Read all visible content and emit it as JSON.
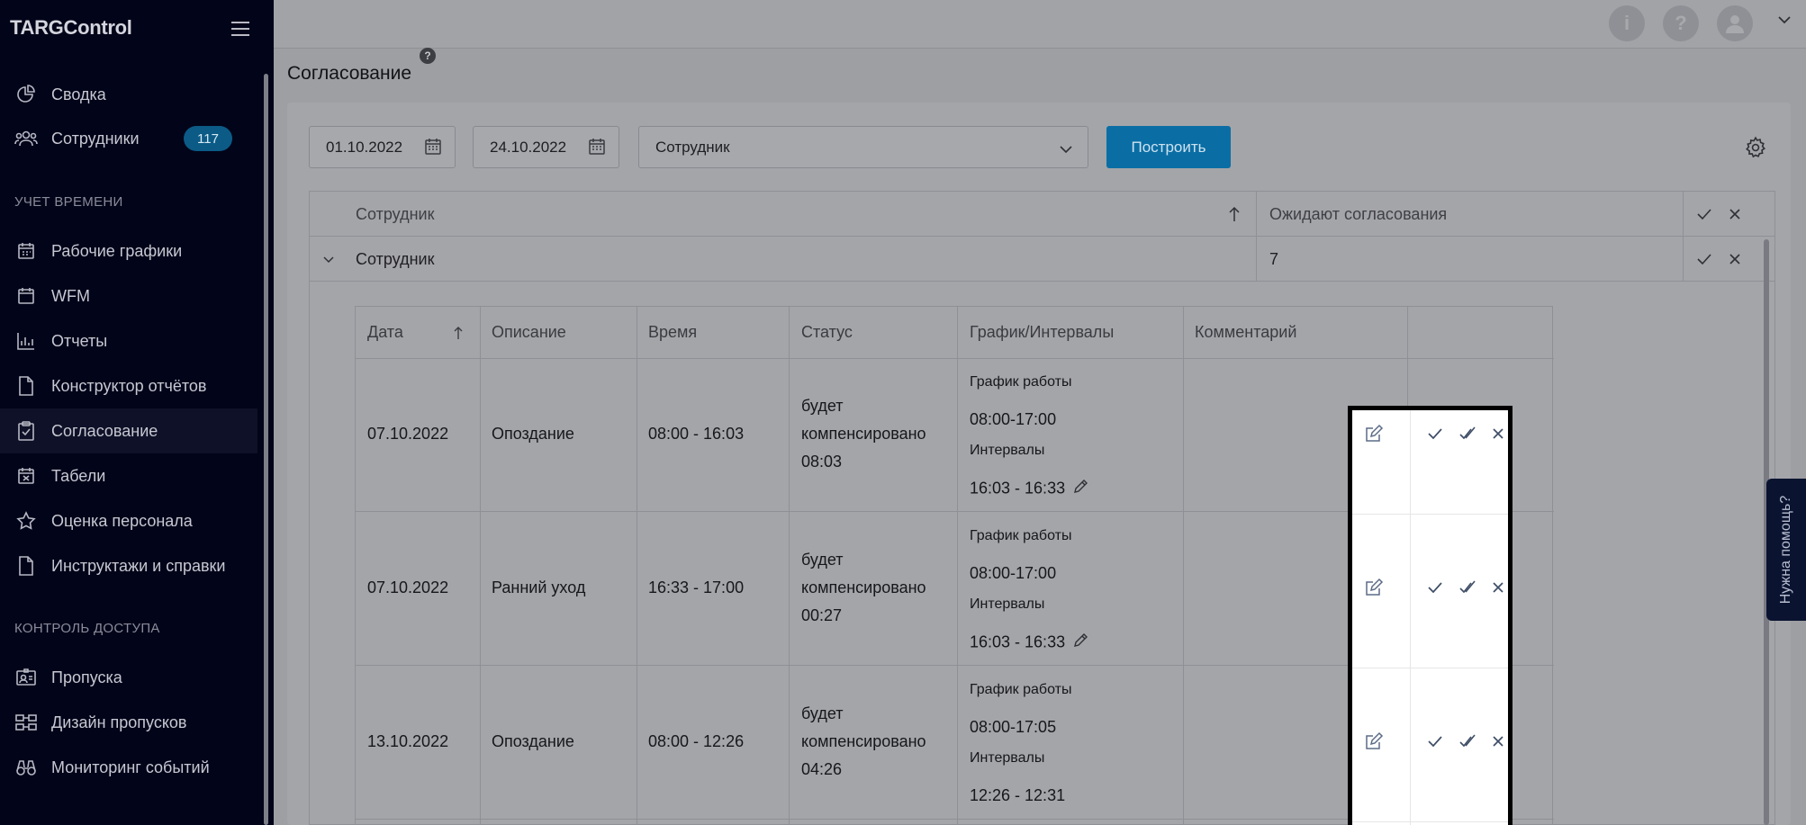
{
  "app": {
    "brand": "TARGControl"
  },
  "sidebar": {
    "items": [
      {
        "label": "Сводка",
        "icon": "pie-chart-icon"
      },
      {
        "label": "Сотрудники",
        "icon": "users-icon",
        "badge": "117"
      },
      {
        "label": "Рабочие графики",
        "icon": "calendar-icon"
      },
      {
        "label": "WFM",
        "icon": "calendar-blank-icon"
      },
      {
        "label": "Отчеты",
        "icon": "bar-chart-icon"
      },
      {
        "label": "Конструктор отчётов",
        "icon": "document-icon"
      },
      {
        "label": "Согласование",
        "icon": "clipboard-check-icon",
        "active": true
      },
      {
        "label": "Табели",
        "icon": "calendar-x-icon"
      },
      {
        "label": "Оценка персонала",
        "icon": "star-icon"
      },
      {
        "label": "Инструктажи и справки",
        "icon": "document-icon"
      },
      {
        "label": "Пропуска",
        "icon": "id-card-icon"
      },
      {
        "label": "Дизайн пропусков",
        "icon": "layout-icon"
      },
      {
        "label": "Мониторинг событий",
        "icon": "binoculars-icon"
      }
    ],
    "sections": {
      "time": "УЧЕТ ВРЕМЕНИ",
      "access": "КОНТРОЛЬ ДОСТУПА"
    }
  },
  "topbar": {
    "info": "i",
    "help": "?"
  },
  "page": {
    "title": "Согласование",
    "help": "?"
  },
  "filters": {
    "date_from": "01.10.2022",
    "date_to": "24.10.2022",
    "employee_select": "Сотрудник",
    "build_label": "Построить"
  },
  "outer_table": {
    "headers": {
      "employee": "Сотрудник",
      "pending": "Ожидают согласования"
    },
    "group": {
      "name": "Сотрудник",
      "count": "7"
    }
  },
  "inner_table": {
    "headers": [
      "Дата",
      "Описание",
      "Время",
      "Статус",
      "График/Интервалы",
      "Комментарий"
    ],
    "rows": [
      {
        "date": "07.10.2022",
        "desc": "Опоздание",
        "time": "08:00 - 16:03",
        "status": [
          "будет",
          "компенсировано",
          "08:03"
        ],
        "sched_title": "График работы",
        "sched": "08:00-17:00",
        "int_title": "Интервалы",
        "interval": "16:03 - 16:33"
      },
      {
        "date": "07.10.2022",
        "desc": "Ранний уход",
        "time": "16:33 - 17:00",
        "status": [
          "будет",
          "компенсировано",
          "00:27"
        ],
        "sched_title": "График работы",
        "sched": "08:00-17:00",
        "int_title": "Интервалы",
        "interval": "16:03 - 16:33"
      },
      {
        "date": "13.10.2022",
        "desc": "Опоздание",
        "time": "08:00 - 12:26",
        "status": [
          "будет",
          "компенсировано",
          "04:26"
        ],
        "sched_title": "График работы",
        "sched": "08:00-17:05",
        "int_title": "Интервалы",
        "interval": "12:26 - 12:31"
      }
    ]
  },
  "help_tab": {
    "label": "Нужна помощь?"
  },
  "colors": {
    "accent": "#0a6ea5",
    "sidebar_bg": "#020419",
    "overlay": "#9e9fa3"
  }
}
